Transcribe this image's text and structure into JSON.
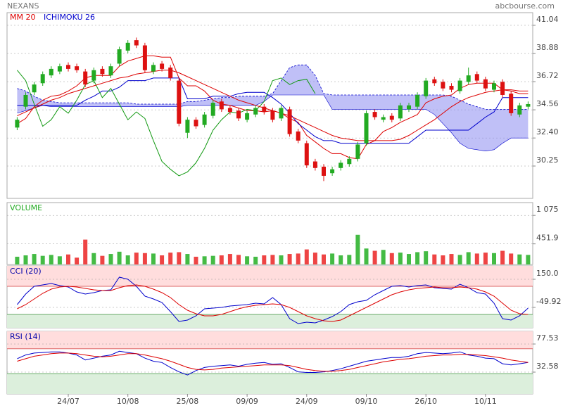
{
  "header": {
    "title": "NEXANS",
    "source": "abcbourse.com"
  },
  "chart_data": [
    {
      "type": "candlestick",
      "categories": [
        null,
        null,
        null,
        null,
        null,
        null,
        "24/07",
        null,
        null,
        null,
        null,
        null,
        null,
        "10/08",
        null,
        null,
        null,
        null,
        null,
        null,
        "25/08",
        null,
        null,
        null,
        null,
        null,
        null,
        "09/09",
        null,
        null,
        null,
        null,
        null,
        null,
        "24/09",
        null,
        null,
        null,
        null,
        null,
        null,
        "09/10",
        null,
        null,
        null,
        null,
        null,
        null,
        "26/10",
        null,
        null,
        null,
        null,
        null,
        null,
        "10/11",
        null,
        null,
        null,
        null,
        null
      ],
      "open": [
        33.2,
        34.8,
        35.9,
        36.6,
        37.2,
        37.5,
        38.0,
        37.9,
        37.5,
        36.8,
        37.7,
        37.2,
        38.1,
        39.1,
        39.9,
        39.5,
        37.5,
        38.1,
        37.8,
        36.8,
        32.8,
        33.8,
        33.4,
        34.1,
        35.2,
        34.7,
        34.5,
        33.8,
        34.2,
        34.8,
        34.5,
        33.9,
        34.6,
        32.9,
        32.0,
        30.6,
        30.2,
        29.7,
        30.1,
        30.4,
        30.8,
        32.0,
        34.4,
        33.8,
        34.1,
        33.9,
        34.6,
        34.8,
        35.6,
        36.9,
        36.7,
        36.4,
        36.0,
        36.7,
        37.3,
        36.9,
        36.1,
        36.7,
        35.8,
        34.2,
        34.8
      ],
      "high": [
        34.0,
        35.9,
        36.7,
        37.5,
        37.9,
        38.1,
        38.2,
        38.1,
        37.7,
        37.8,
        37.9,
        38.1,
        39.4,
        39.9,
        40.1,
        39.7,
        38.2,
        38.3,
        38.0,
        37.0,
        34.0,
        34.0,
        34.4,
        35.3,
        35.4,
        34.9,
        34.7,
        34.5,
        34.9,
        35.0,
        34.7,
        34.9,
        34.8,
        33.1,
        32.2,
        30.8,
        30.4,
        30.2,
        30.7,
        31.0,
        32.1,
        34.5,
        34.6,
        34.2,
        34.3,
        35.1,
        35.1,
        35.9,
        37.0,
        37.1,
        36.9,
        36.6,
        37.0,
        37.8,
        37.5,
        37.1,
        36.8,
        36.9,
        36.0,
        35.1,
        35.2
      ],
      "low": [
        33.0,
        34.6,
        35.7,
        36.4,
        37.0,
        37.3,
        37.5,
        37.4,
        36.3,
        36.6,
        37.1,
        37.0,
        37.9,
        38.9,
        39.3,
        37.4,
        37.3,
        37.5,
        36.8,
        33.3,
        32.4,
        33.1,
        33.2,
        33.9,
        34.4,
        34.2,
        33.7,
        33.6,
        34.0,
        34.2,
        33.6,
        33.7,
        32.5,
        32.0,
        30.1,
        29.9,
        29.1,
        29.5,
        29.9,
        30.2,
        30.6,
        31.8,
        33.8,
        33.6,
        33.6,
        33.7,
        34.4,
        34.6,
        35.4,
        36.4,
        36.0,
        35.9,
        35.8,
        36.5,
        36.6,
        36.0,
        35.9,
        35.5,
        34.1,
        34.0,
        34.6
      ],
      "close": [
        33.8,
        35.7,
        36.5,
        37.3,
        37.7,
        37.9,
        37.7,
        37.6,
        36.5,
        37.6,
        37.3,
        37.9,
        39.2,
        39.7,
        39.5,
        37.6,
        38.0,
        37.7,
        37.0,
        33.5,
        33.8,
        33.3,
        34.2,
        35.1,
        34.6,
        34.4,
        33.9,
        34.3,
        34.7,
        34.4,
        33.8,
        34.7,
        32.7,
        32.2,
        30.3,
        30.1,
        29.5,
        30.0,
        30.5,
        30.8,
        31.9,
        34.3,
        34.0,
        34.0,
        33.8,
        34.9,
        34.9,
        35.7,
        36.8,
        36.6,
        36.2,
        36.1,
        36.8,
        37.2,
        36.8,
        36.2,
        36.6,
        35.7,
        34.3,
        34.9,
        35.0
      ],
      "up_color": "#22aa22",
      "down_color": "#dd1111",
      "overlays": [
        {
          "name": "MM 20",
          "color": "#dd0000",
          "values": [
            34.1,
            34.4,
            34.7,
            35.0,
            35.3,
            35.5,
            35.8,
            36.0,
            36.2,
            36.4,
            36.6,
            36.8,
            37.0,
            37.1,
            37.3,
            37.4,
            37.5,
            37.6,
            37.6,
            37.4,
            37.1,
            36.8,
            36.5,
            36.2,
            35.9,
            35.6,
            35.3,
            35.1,
            34.9,
            34.7,
            34.5,
            34.3,
            34.1,
            33.8,
            33.5,
            33.2,
            32.9,
            32.6,
            32.4,
            32.3,
            32.2,
            32.2,
            32.2,
            32.2,
            32.2,
            32.3,
            32.6,
            33.0,
            33.4,
            33.8,
            34.3,
            34.8,
            35.2,
            35.5,
            35.7,
            35.9,
            36.0,
            36.1,
            36.1,
            36.0,
            36.0
          ]
        }
      ],
      "ichimoku": {
        "name": "ICHIMOKU 26",
        "color": "#0000cc",
        "lines": [
          {
            "color": "#dd0000",
            "values": [
              33.5,
              33.9,
              34.8,
              35.3,
              35.6,
              35.7,
              36.0,
              36.4,
              37.0,
              37.2,
              37.2,
              37.2,
              37.9,
              38.3,
              38.5,
              38.7,
              38.7,
              38.6,
              38.6,
              37.0,
              36.4,
              36.4,
              36.0,
              35.3,
              35.0,
              34.9,
              34.7,
              34.5,
              34.5,
              34.4,
              34.5,
              34.3,
              33.9,
              33.6,
              32.6,
              32.1,
              31.6,
              31.2,
              31.2,
              30.9,
              30.8,
              31.9,
              32.2,
              32.9,
              33.2,
              33.6,
              33.9,
              34.2,
              35.1,
              35.4,
              35.6,
              35.7,
              36.2,
              36.5,
              36.6,
              36.6,
              36.6,
              36.1,
              36.0,
              35.8,
              35.8
            ]
          },
          {
            "color": "#0000cc",
            "values": [
              34.9,
              34.9,
              34.9,
              34.9,
              34.9,
              34.9,
              34.9,
              34.9,
              35.3,
              35.6,
              36.0,
              36.0,
              36.3,
              36.8,
              36.8,
              36.8,
              37.0,
              37.0,
              37.0,
              37.0,
              35.4,
              35.4,
              35.4,
              35.6,
              35.6,
              35.6,
              35.8,
              35.9,
              35.9,
              35.9,
              35.5,
              35.0,
              34.3,
              33.5,
              33.0,
              32.5,
              32.2,
              32.2,
              32.0,
              32.0,
              32.0,
              32.0,
              32.0,
              32.0,
              32.0,
              32.0,
              32.0,
              32.5,
              33.0,
              33.0,
              33.0,
              33.0,
              33.0,
              33.0,
              33.5,
              34.0,
              34.4,
              35.5,
              35.5,
              35.5,
              35.5
            ]
          },
          {
            "color": "#119911",
            "values": [
              37.6,
              36.8,
              35.0,
              33.3,
              33.8,
              34.8,
              34.3,
              35.3,
              36.5,
              36.8,
              35.5,
              36.2,
              35.0,
              33.8,
              34.4,
              33.9,
              32.2,
              30.6,
              30.0,
              29.5,
              29.8,
              30.5,
              31.6,
              33.0,
              33.8,
              34.4,
              34.3,
              34.6,
              34.5,
              35.2,
              36.8,
              37.0,
              36.5,
              36.8,
              36.9,
              35.8,
              null,
              null,
              null,
              null,
              null,
              null,
              null,
              null,
              null,
              null,
              null,
              null,
              null,
              null,
              null,
              null,
              null,
              null,
              null,
              null,
              null,
              null,
              null,
              null,
              null
            ]
          }
        ],
        "cloud": {
          "color": "#8c8cf0",
          "values_a": [
            36.2,
            36.0,
            35.6,
            35.3,
            35.2,
            35.1,
            35.1,
            35.1,
            35.1,
            35.1,
            35.1,
            35.1,
            35.1,
            35.1,
            35.0,
            35.0,
            35.0,
            35.0,
            35.0,
            35.0,
            35.2,
            35.2,
            35.3,
            35.4,
            35.5,
            35.5,
            35.6,
            35.6,
            35.6,
            35.6,
            35.8,
            36.8,
            37.8,
            38.0,
            38.0,
            37.2,
            35.8,
            35.7,
            35.7,
            35.7,
            35.7,
            35.7,
            35.7,
            35.7,
            35.7,
            35.7,
            35.7,
            35.7,
            35.7,
            35.7,
            35.7,
            35.6,
            35.3,
            35.0,
            34.8,
            34.6,
            34.6,
            34.6,
            34.6,
            34.6,
            34.6
          ],
          "values_b": [
            34.3,
            34.5,
            34.7,
            34.9,
            34.8,
            34.8,
            34.8,
            34.8,
            34.8,
            34.8,
            34.8,
            34.8,
            34.8,
            34.8,
            34.8,
            34.8,
            34.8,
            34.8,
            34.8,
            34.8,
            34.9,
            34.9,
            34.9,
            34.9,
            34.9,
            34.9,
            34.9,
            34.9,
            34.9,
            35.2,
            35.7,
            35.7,
            35.7,
            35.7,
            35.7,
            35.7,
            35.7,
            34.6,
            34.6,
            34.6,
            34.6,
            34.6,
            34.6,
            34.6,
            34.6,
            34.6,
            34.6,
            34.6,
            34.6,
            34.2,
            33.5,
            32.8,
            32.0,
            31.6,
            31.5,
            31.4,
            31.5,
            32.0,
            32.4,
            32.4,
            32.4
          ]
        }
      },
      "ylim": [
        27.77,
        42.01
      ],
      "yticks": [
        41.04,
        38.88,
        36.72,
        34.56,
        {
          "value": 32.4,
          "label": "32.40"
        },
        30.25
      ]
    },
    {
      "type": "bar",
      "title": "VOLUME",
      "title_color": "#22aa22",
      "values": [
        170,
        200,
        230,
        190,
        210,
        180,
        220,
        150,
        545,
        250,
        190,
        230,
        280,
        200,
        260,
        250,
        240,
        200,
        260,
        270,
        230,
        170,
        180,
        190,
        200,
        230,
        210,
        180,
        170,
        200,
        210,
        200,
        230,
        240,
        330,
        260,
        220,
        240,
        200,
        210,
        650,
        350,
        300,
        320,
        250,
        260,
        230,
        270,
        290,
        220,
        200,
        230,
        210,
        270,
        240,
        260,
        250,
        300,
        240,
        220,
        210
      ],
      "up_color": "#44bb44",
      "down_color": "#ee4444",
      "ylim": [
        0,
        1355
      ],
      "yticks": [
        {
          "value": 1075,
          "label": "1 075"
        },
        451.9
      ]
    },
    {
      "type": "line",
      "title": "CCI (20)",
      "title_color": "#0000aa",
      "series": [
        {
          "color": "#0000cc",
          "values": [
            -30,
            45,
            100,
            110,
            120,
            105,
            95,
            60,
            45,
            55,
            70,
            75,
            165,
            150,
            100,
            30,
            10,
            -15,
            -80,
            -150,
            -140,
            -110,
            -60,
            -55,
            -50,
            -40,
            -35,
            -30,
            -20,
            -25,
            20,
            -30,
            -130,
            -165,
            -155,
            -160,
            -140,
            -115,
            -80,
            -30,
            -10,
            0,
            40,
            70,
            100,
            105,
            95,
            105,
            110,
            90,
            85,
            80,
            115,
            90,
            55,
            45,
            -20,
            -130,
            -140,
            -110,
            -55
          ]
        },
        {
          "color": "#dd0000",
          "values": [
            -60,
            -30,
            10,
            50,
            80,
            95,
            100,
            95,
            85,
            75,
            70,
            70,
            90,
            105,
            110,
            100,
            80,
            55,
            20,
            -30,
            -70,
            -95,
            -110,
            -110,
            -100,
            -80,
            -60,
            -45,
            -35,
            -30,
            -25,
            -30,
            -50,
            -80,
            -110,
            -130,
            -145,
            -150,
            -140,
            -110,
            -80,
            -50,
            -20,
            10,
            40,
            60,
            75,
            85,
            90,
            95,
            90,
            90,
            95,
            90,
            80,
            60,
            30,
            -20,
            -70,
            -95,
            -100
          ]
        }
      ],
      "bands": [
        100,
        -100
      ],
      "band_colors": [
        "#ffdddd",
        "#dcefdc"
      ],
      "band_line_colors": [
        "#dd6666",
        "#66aa66"
      ],
      "ylim": [
        -195,
        245
      ],
      "yticks": [
        {
          "value": 150,
          "label": "150.0"
        },
        -49.92
      ]
    },
    {
      "type": "line",
      "title": "RSI (14)",
      "title_color": "#0000aa",
      "series": [
        {
          "color": "#0000cc",
          "values": [
            54,
            60,
            63,
            64,
            65,
            65,
            63,
            60,
            52,
            55,
            58,
            60,
            66,
            64,
            62,
            55,
            50,
            48,
            40,
            33,
            28,
            35,
            40,
            42,
            43,
            44,
            42,
            45,
            47,
            48,
            45,
            46,
            40,
            33,
            32,
            32,
            33,
            35,
            38,
            42,
            46,
            50,
            52,
            54,
            56,
            56,
            58,
            62,
            64,
            63,
            62,
            63,
            65,
            60,
            58,
            55,
            54,
            46,
            44,
            46,
            48
          ]
        },
        {
          "color": "#dd0000",
          "values": [
            50,
            54,
            58,
            60,
            62,
            63,
            63,
            62,
            60,
            58,
            57,
            58,
            60,
            62,
            62,
            60,
            57,
            54,
            50,
            45,
            40,
            37,
            36,
            37,
            39,
            40,
            41,
            42,
            43,
            44,
            44,
            44,
            43,
            40,
            37,
            35,
            34,
            34,
            35,
            37,
            40,
            43,
            46,
            49,
            51,
            53,
            54,
            56,
            58,
            59,
            60,
            60,
            61,
            61,
            60,
            59,
            57,
            55,
            52,
            50,
            48
          ]
        }
      ],
      "bands": [
        70,
        30
      ],
      "band_colors": [
        "#ffdddd",
        "#dcefdc"
      ],
      "band_line_colors": [
        "#dd6666",
        "#66aa66"
      ],
      "ylim": [
        -2.3,
        97.8
      ],
      "yticks": [
        77.53,
        32.58
      ]
    }
  ]
}
